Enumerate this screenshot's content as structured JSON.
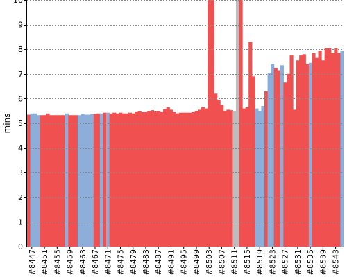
{
  "chart_data": {
    "type": "area",
    "title": "",
    "xlabel": "",
    "ylabel": "mins",
    "ylim": [
      0,
      10
    ],
    "y_ticks": [
      0,
      1,
      2,
      3,
      4,
      5,
      6,
      7,
      8,
      9,
      10
    ],
    "grid": true,
    "legend": "none",
    "colors": {
      "fail": "#f05050",
      "success": "#8caed8",
      "aborted": "#bdbdbd",
      "grid": "#888888",
      "axis": "#000000"
    },
    "x_tick_labels": [
      "#8447",
      "#8451",
      "#8455",
      "#8459",
      "#8463",
      "#8467",
      "#8471",
      "#8475",
      "#8479",
      "#8483",
      "#8487",
      "#8491",
      "#8495",
      "#8499",
      "#8503",
      "#8507",
      "#8511",
      "#8515",
      "#8519",
      "#8523",
      "#8527",
      "#8531",
      "#8535",
      "#8539",
      "#8543"
    ],
    "x": [
      8446,
      8447,
      8448,
      8449,
      8450,
      8451,
      8452,
      8453,
      8454,
      8455,
      8456,
      8457,
      8458,
      8459,
      8460,
      8461,
      8462,
      8463,
      8464,
      8465,
      8466,
      8467,
      8468,
      8469,
      8470,
      8471,
      8472,
      8473,
      8474,
      8475,
      8476,
      8477,
      8478,
      8479,
      8480,
      8481,
      8482,
      8483,
      8484,
      8485,
      8486,
      8487,
      8488,
      8489,
      8490,
      8491,
      8492,
      8493,
      8494,
      8495,
      8496,
      8497,
      8498,
      8499,
      8500,
      8501,
      8502,
      8503,
      8504,
      8505,
      8506,
      8507,
      8508,
      8509,
      8510,
      8511,
      8512,
      8513,
      8514,
      8515,
      8516,
      8517,
      8518,
      8519,
      8520,
      8521,
      8522,
      8523,
      8524,
      8525,
      8526,
      8527,
      8528,
      8529,
      8530,
      8531,
      8532,
      8533,
      8534,
      8535,
      8536,
      8537,
      8538,
      8539,
      8540,
      8541,
      8542,
      8543,
      8544,
      8545
    ],
    "values": [
      5.35,
      5.4,
      5.4,
      5.33,
      5.33,
      5.33,
      5.4,
      5.33,
      5.33,
      5.33,
      5.33,
      5.33,
      5.4,
      5.33,
      5.33,
      5.33,
      5.33,
      5.38,
      5.35,
      5.35,
      5.38,
      5.38,
      5.4,
      5.4,
      5.43,
      5.43,
      5.4,
      5.43,
      5.4,
      5.43,
      5.4,
      5.4,
      5.43,
      5.4,
      5.45,
      5.5,
      5.45,
      5.45,
      5.5,
      5.53,
      5.48,
      5.5,
      5.45,
      5.57,
      5.65,
      5.55,
      5.45,
      5.4,
      5.43,
      5.43,
      5.43,
      5.43,
      5.45,
      5.5,
      5.55,
      5.65,
      5.6,
      10.0,
      10.0,
      6.2,
      5.95,
      5.75,
      5.5,
      5.55,
      5.53,
      5.5,
      10.5,
      10.5,
      5.6,
      5.65,
      8.3,
      6.9,
      5.6,
      5.5,
      5.7,
      6.3,
      7.05,
      7.4,
      7.25,
      7.15,
      7.35,
      6.65,
      7.0,
      7.75,
      5.55,
      7.55,
      7.75,
      7.8,
      7.4,
      7.45,
      7.85,
      7.65,
      7.95,
      7.55,
      8.05,
      8.05,
      7.85,
      8.05,
      7.85,
      7.95
    ],
    "status": [
      "f",
      "s",
      "s",
      "s",
      "f",
      "f",
      "f",
      "f",
      "f",
      "f",
      "f",
      "f",
      "s",
      "f",
      "f",
      "f",
      "s",
      "s",
      "s",
      "s",
      "s",
      "f",
      "f",
      "s",
      "f",
      "s",
      "f",
      "f",
      "f",
      "f",
      "f",
      "f",
      "f",
      "f",
      "f",
      "f",
      "f",
      "f",
      "f",
      "f",
      "f",
      "f",
      "f",
      "f",
      "f",
      "f",
      "f",
      "f",
      "f",
      "f",
      "f",
      "f",
      "f",
      "f",
      "f",
      "f",
      "f",
      "f",
      "f",
      "f",
      "f",
      "f",
      "f",
      "f",
      "f",
      "a",
      "a",
      "f",
      "f",
      "f",
      "f",
      "f",
      "s",
      "s",
      "s",
      "f",
      "s",
      "s",
      "f",
      "f",
      "s",
      "f",
      "f",
      "f",
      "f",
      "f",
      "f",
      "f",
      "f",
      "s",
      "f",
      "f",
      "f",
      "f",
      "f",
      "f",
      "f",
      "f",
      "f",
      "s"
    ]
  }
}
